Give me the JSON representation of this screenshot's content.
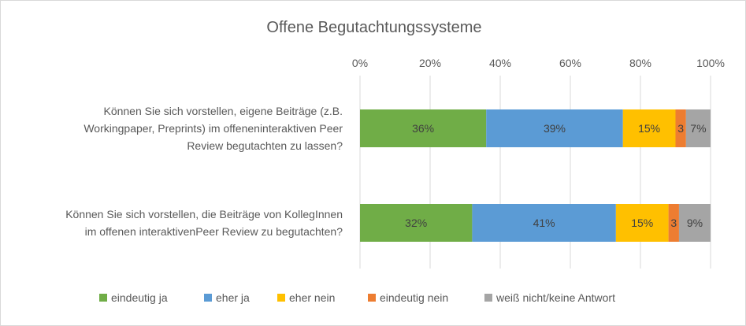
{
  "chart_data": {
    "type": "bar",
    "orientation": "horizontal",
    "stacked": "percent",
    "title": "Offene Begutachtungssysteme",
    "xlabel": "",
    "ylabel": "",
    "xlim": [
      0,
      100
    ],
    "x_ticks": [
      "0%",
      "20%",
      "40%",
      "60%",
      "80%",
      "100%"
    ],
    "x_tick_values": [
      0,
      20,
      40,
      60,
      80,
      100
    ],
    "grid": true,
    "legend_position": "bottom",
    "categories": [
      [
        "Können Sie sich vorstellen, eigene Beiträge (z.B.",
        "Workingpaper, Preprints) im offeneninteraktiven Peer",
        "Review begutachten zu lassen?"
      ],
      [
        "Können Sie sich vorstellen, die Beiträge von KollegInnen",
        "im offenen interaktivenPeer Review zu begutachten?"
      ]
    ],
    "series": [
      {
        "name": "eindeutig ja",
        "color": "#70ad47",
        "values": [
          36,
          32
        ],
        "labels": [
          "36%",
          "32%"
        ]
      },
      {
        "name": "eher ja",
        "color": "#5b9bd5",
        "values": [
          39,
          41
        ],
        "labels": [
          "39%",
          "41%"
        ]
      },
      {
        "name": "eher nein",
        "color": "#ffc000",
        "values": [
          15,
          15
        ],
        "labels": [
          "15%",
          "15%"
        ]
      },
      {
        "name": "eindeutig nein",
        "color": "#ed7d31",
        "values": [
          3,
          3
        ],
        "labels": [
          "3",
          "3"
        ]
      },
      {
        "name": "weiß nicht/keine Antwort",
        "color": "#a5a5a5",
        "values": [
          7,
          9
        ],
        "labels": [
          "7%",
          "9%"
        ]
      }
    ]
  }
}
